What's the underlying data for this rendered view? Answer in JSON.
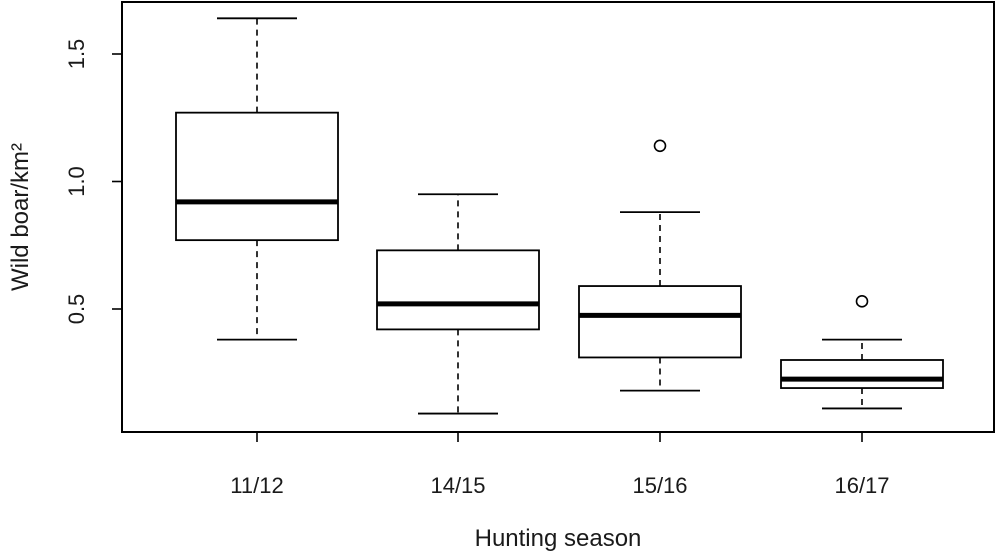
{
  "chart_data": {
    "type": "boxplot",
    "xlabel": "Hunting season",
    "ylabel": "Wild boar/km²",
    "categories": [
      "11/12",
      "14/15",
      "15/16",
      "16/17"
    ],
    "ylim": [
      0.0,
      1.7
    ],
    "yticks": [
      "0.5",
      "1.0",
      "1.5"
    ],
    "grid": false,
    "boxes": [
      {
        "category": "11/12",
        "whisker_low": 0.38,
        "q1": 0.77,
        "median": 0.92,
        "q3": 1.27,
        "whisker_high": 1.64,
        "outliers": []
      },
      {
        "category": "14/15",
        "whisker_low": 0.09,
        "q1": 0.42,
        "median": 0.52,
        "q3": 0.73,
        "whisker_high": 0.95,
        "outliers": []
      },
      {
        "category": "15/16",
        "whisker_low": 0.18,
        "q1": 0.31,
        "median": 0.475,
        "q3": 0.59,
        "whisker_high": 0.88,
        "outliers": [
          1.14
        ]
      },
      {
        "category": "16/17",
        "whisker_low": 0.11,
        "q1": 0.19,
        "median": 0.225,
        "q3": 0.3,
        "whisker_high": 0.38,
        "outliers": [
          0.53
        ]
      }
    ]
  }
}
